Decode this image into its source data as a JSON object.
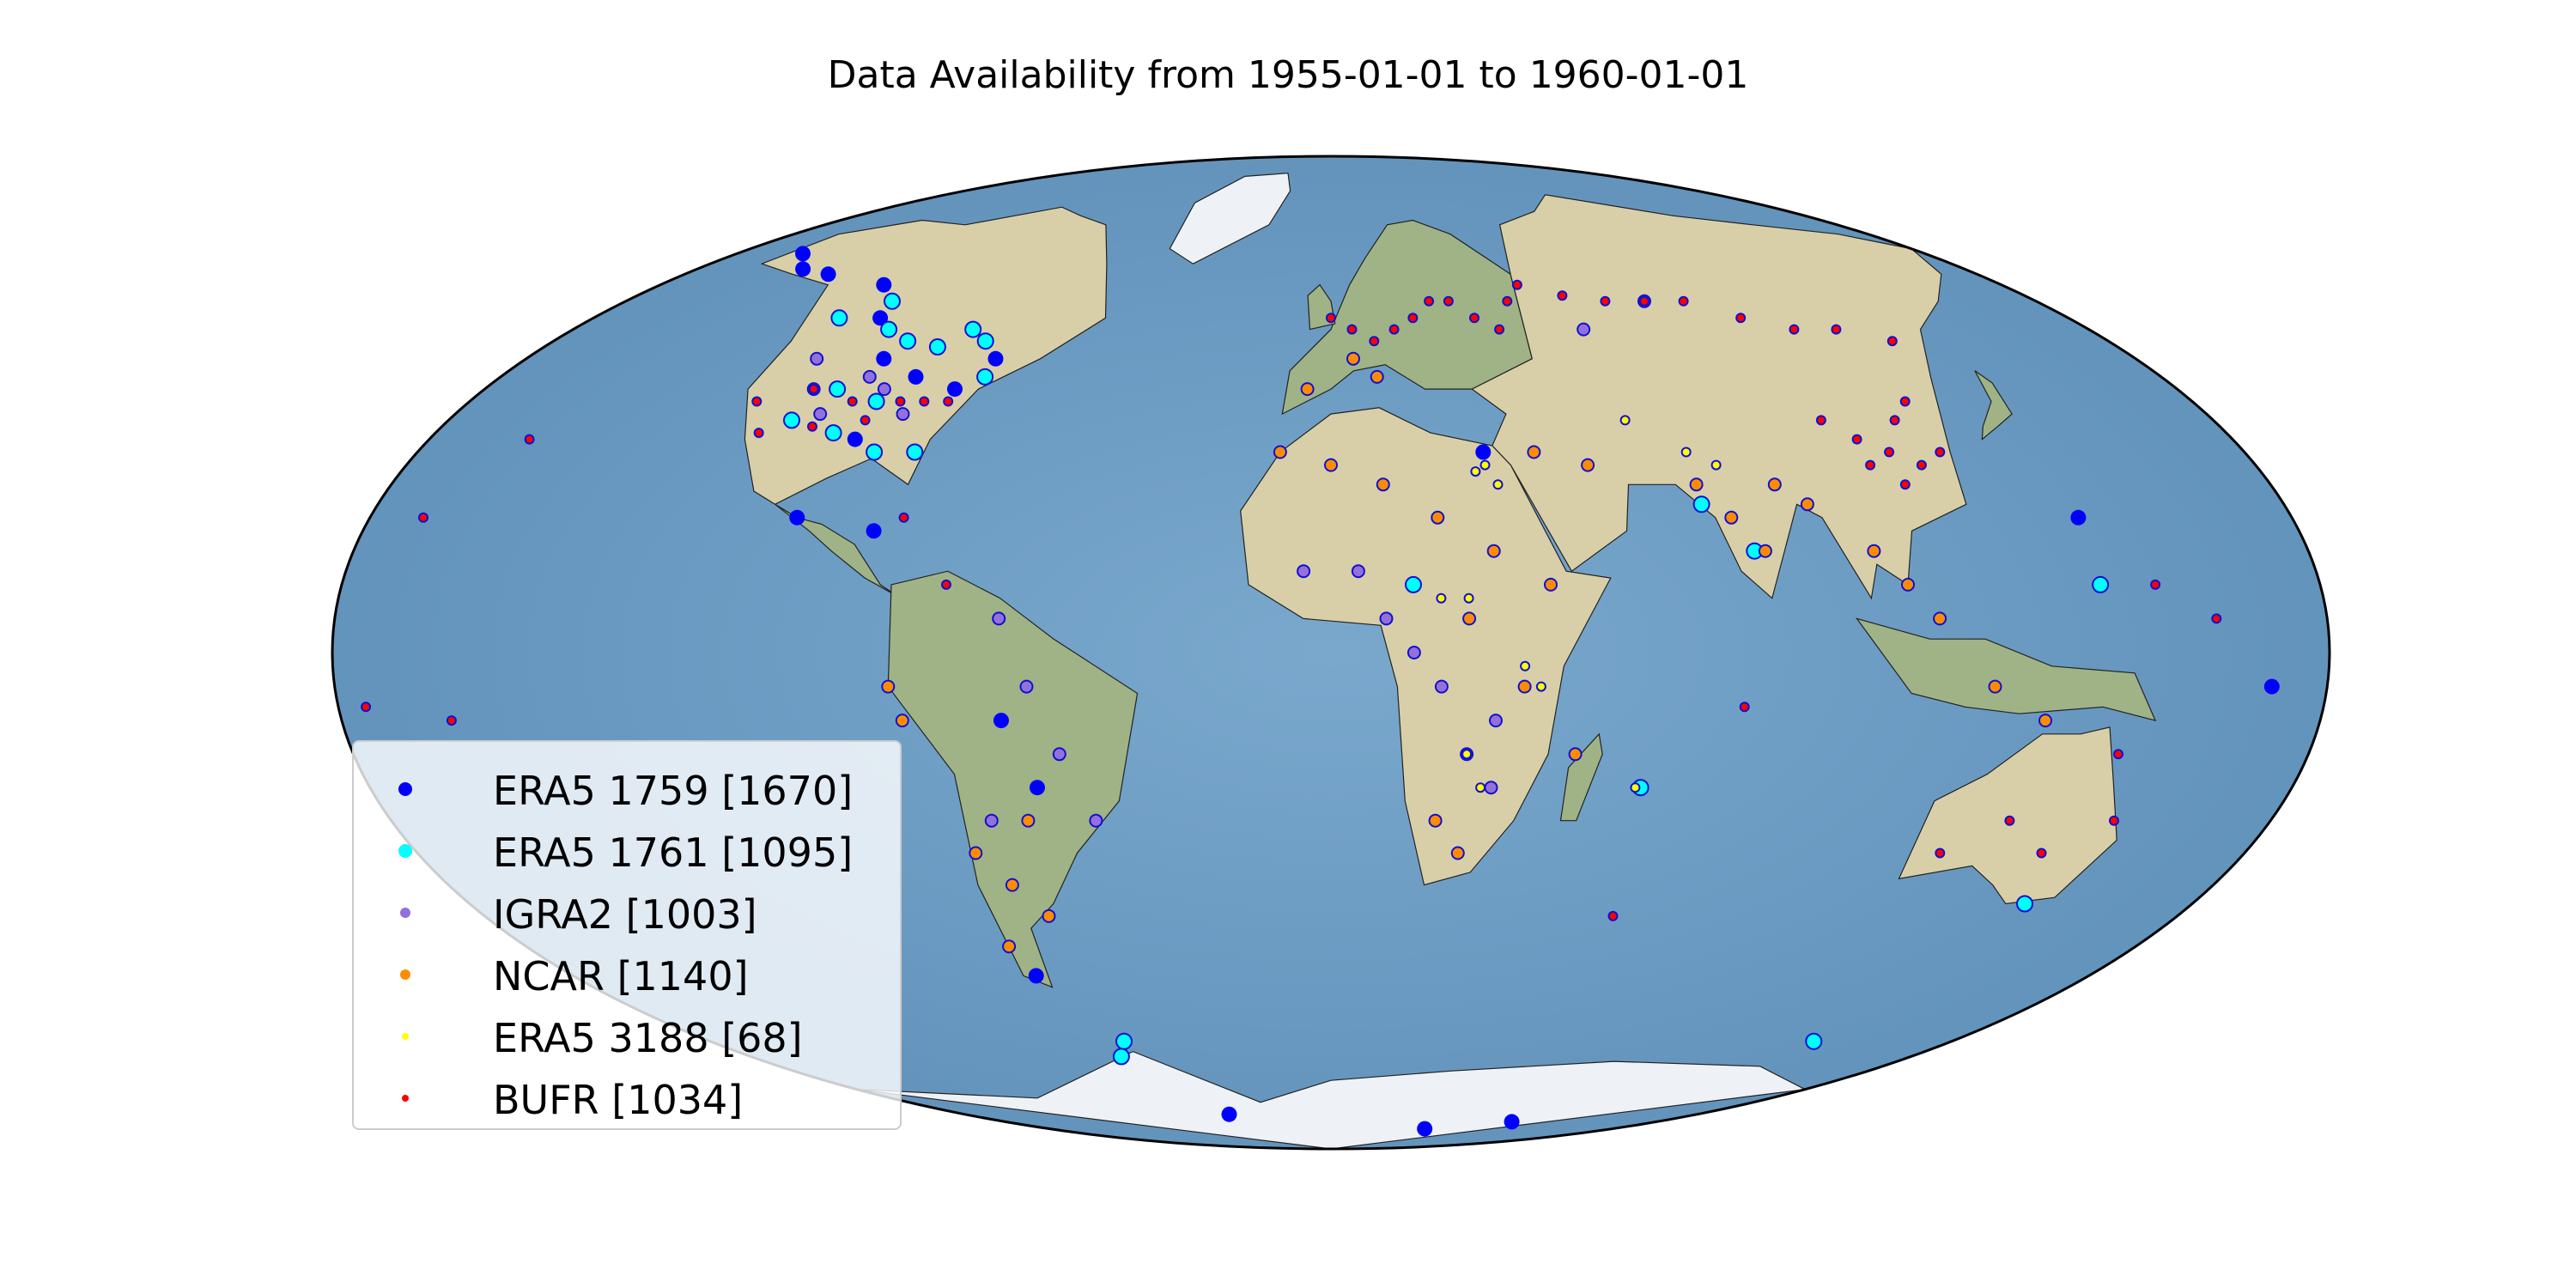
{
  "title": "Data Availability from 1955-01-01 to 1960-01-01",
  "colors": {
    "ocean": "#6b9cc4",
    "land": "#d8cfa8",
    "land_green": "#9fb386",
    "ice": "#eef1f5",
    "coast": "#222222",
    "marker_edge": "#1010d0"
  },
  "legend": {
    "placement": "lower-left",
    "entries": [
      {
        "label": "ERA5 1759 [1670]",
        "color": "#0000ff",
        "size": "large"
      },
      {
        "label": "ERA5 1761 [1095]",
        "color": "#00ffff",
        "size": "large"
      },
      {
        "label": "IGRA2 [1003]",
        "color": "#9370db",
        "size": "medium"
      },
      {
        "label": "NCAR [1140]",
        "color": "#ff8c00",
        "size": "medium"
      },
      {
        "label": "ERA5 3188 [68]",
        "color": "#ffff00",
        "size": "small"
      },
      {
        "label": "BUFR [1034]",
        "color": "#ff0000",
        "size": "small"
      }
    ]
  },
  "chart_data": {
    "type": "scatter",
    "projection": "Mollweide",
    "title": "Data Availability from 1955-01-01 to 1960-01-01",
    "legend_placement": "lower-left",
    "series": [
      {
        "name": "ERA5 1759 [1670]",
        "color": "#0000ff",
        "points": [
          [
            -120,
            58
          ],
          [
            -110,
            52
          ],
          [
            -100,
            45
          ],
          [
            -90,
            42
          ],
          [
            -80,
            40
          ],
          [
            -95,
            32
          ],
          [
            -75,
            45
          ],
          [
            -140,
            60
          ],
          [
            -150,
            61
          ],
          [
            -160,
            64
          ],
          [
            -85,
            18
          ],
          [
            -100,
            20
          ],
          [
            -60,
            -10
          ],
          [
            -55,
            -20
          ],
          [
            -70,
            -50
          ],
          [
            -50,
            -78
          ],
          [
            30,
            30
          ],
          [
            140,
            20
          ],
          [
            170,
            -5
          ],
          [
            100,
            -80
          ],
          [
            60,
            -82
          ]
        ]
      },
      {
        "name": "ERA5 1761 [1095]",
        "color": "#00ffff",
        "points": [
          [
            -120,
            52
          ],
          [
            -112,
            55
          ],
          [
            -105,
            50
          ],
          [
            -98,
            48
          ],
          [
            -90,
            47
          ],
          [
            -85,
            50
          ],
          [
            -80,
            48
          ],
          [
            -75,
            42
          ],
          [
            -95,
            38
          ],
          [
            -105,
            40
          ],
          [
            -100,
            33
          ],
          [
            -110,
            35
          ],
          [
            -82,
            30
          ],
          [
            -90,
            30
          ],
          [
            -60,
            -62
          ],
          [
            -65,
            -65
          ],
          [
            15,
            10
          ],
          [
            70,
            22
          ],
          [
            78,
            15
          ],
          [
            58,
            -20
          ],
          [
            145,
            -38
          ],
          [
            140,
            -62
          ],
          [
            140,
            10
          ]
        ]
      },
      {
        "name": "IGRA2 [1003]",
        "color": "#9370db",
        "points": [
          [
            -110,
            40
          ],
          [
            -105,
            36
          ],
          [
            -100,
            42
          ],
          [
            -95,
            40
          ],
          [
            -88,
            36
          ],
          [
            -115,
            45
          ],
          [
            -60,
            5
          ],
          [
            -55,
            -5
          ],
          [
            -50,
            -15
          ],
          [
            -45,
            -25
          ],
          [
            -65,
            -25
          ],
          [
            10,
            5
          ],
          [
            15,
            0
          ],
          [
            20,
            -5
          ],
          [
            25,
            -15
          ],
          [
            30,
            -20
          ],
          [
            5,
            12
          ],
          [
            -5,
            12
          ],
          [
            60,
            50
          ],
          [
            80,
            55
          ],
          [
            30,
            -10
          ]
        ]
      },
      {
        "name": "NCAR [1140]",
        "color": "#ff8c00",
        "points": [
          [
            -10,
            30
          ],
          [
            0,
            28
          ],
          [
            10,
            25
          ],
          [
            20,
            20
          ],
          [
            30,
            15
          ],
          [
            40,
            10
          ],
          [
            25,
            5
          ],
          [
            35,
            -5
          ],
          [
            45,
            -15
          ],
          [
            20,
            -25
          ],
          [
            25,
            -30
          ],
          [
            -60,
            -40
          ],
          [
            -65,
            -35
          ],
          [
            -70,
            -30
          ],
          [
            -72,
            -45
          ],
          [
            -58,
            -25
          ],
          [
            70,
            25
          ],
          [
            75,
            20
          ],
          [
            80,
            15
          ],
          [
            85,
            25
          ],
          [
            90,
            22
          ],
          [
            100,
            15
          ],
          [
            105,
            10
          ],
          [
            110,
            5
          ],
          [
            120,
            -5
          ],
          [
            130,
            -10
          ],
          [
            -5,
            40
          ],
          [
            5,
            45
          ],
          [
            10,
            42
          ],
          [
            40,
            30
          ],
          [
            50,
            28
          ],
          [
            -80,
            -5
          ],
          [
            -78,
            -10
          ]
        ]
      },
      {
        "name": "ERA5 3188 [68]",
        "color": "#ffff00",
        "points": [
          [
            30,
            28
          ],
          [
            32,
            25
          ],
          [
            28,
            27
          ],
          [
            25,
            8
          ],
          [
            20,
            8
          ],
          [
            35,
            -2
          ],
          [
            38,
            -5
          ],
          [
            25,
            -15
          ],
          [
            28,
            -20
          ],
          [
            57,
            -20
          ],
          [
            60,
            35
          ],
          [
            70,
            30
          ],
          [
            75,
            28
          ]
        ]
      },
      {
        "name": "BUFR [1034]",
        "color": "#ff0000",
        "points": [
          [
            0,
            52
          ],
          [
            5,
            50
          ],
          [
            10,
            48
          ],
          [
            15,
            50
          ],
          [
            20,
            52
          ],
          [
            25,
            55
          ],
          [
            30,
            55
          ],
          [
            35,
            52
          ],
          [
            40,
            50
          ],
          [
            45,
            55
          ],
          [
            50,
            58
          ],
          [
            60,
            56
          ],
          [
            70,
            55
          ],
          [
            80,
            55
          ],
          [
            90,
            55
          ],
          [
            100,
            52
          ],
          [
            110,
            50
          ],
          [
            120,
            50
          ],
          [
            130,
            48
          ],
          [
            100,
            35
          ],
          [
            105,
            32
          ],
          [
            110,
            30
          ],
          [
            115,
            28
          ],
          [
            120,
            30
          ],
          [
            110,
            25
          ],
          [
            105,
            28
          ],
          [
            115,
            35
          ],
          [
            120,
            38
          ],
          [
            -110,
            40
          ],
          [
            -100,
            38
          ],
          [
            -95,
            35
          ],
          [
            -90,
            38
          ],
          [
            -85,
            38
          ],
          [
            -80,
            38
          ],
          [
            -105,
            34
          ],
          [
            -120,
            38
          ],
          [
            -115,
            33
          ],
          [
            -160,
            32
          ],
          [
            -170,
            20
          ],
          [
            -175,
            -8
          ],
          [
            -160,
            -10
          ],
          [
            150,
            -25
          ],
          [
            140,
            -30
          ],
          [
            130,
            -25
          ],
          [
            120,
            -30
          ],
          [
            145,
            -15
          ],
          [
            -70,
            10
          ],
          [
            -80,
            20
          ],
          [
            60,
            -40
          ],
          [
            75,
            -8
          ],
          [
            150,
            10
          ],
          [
            160,
            5
          ]
        ]
      }
    ]
  }
}
